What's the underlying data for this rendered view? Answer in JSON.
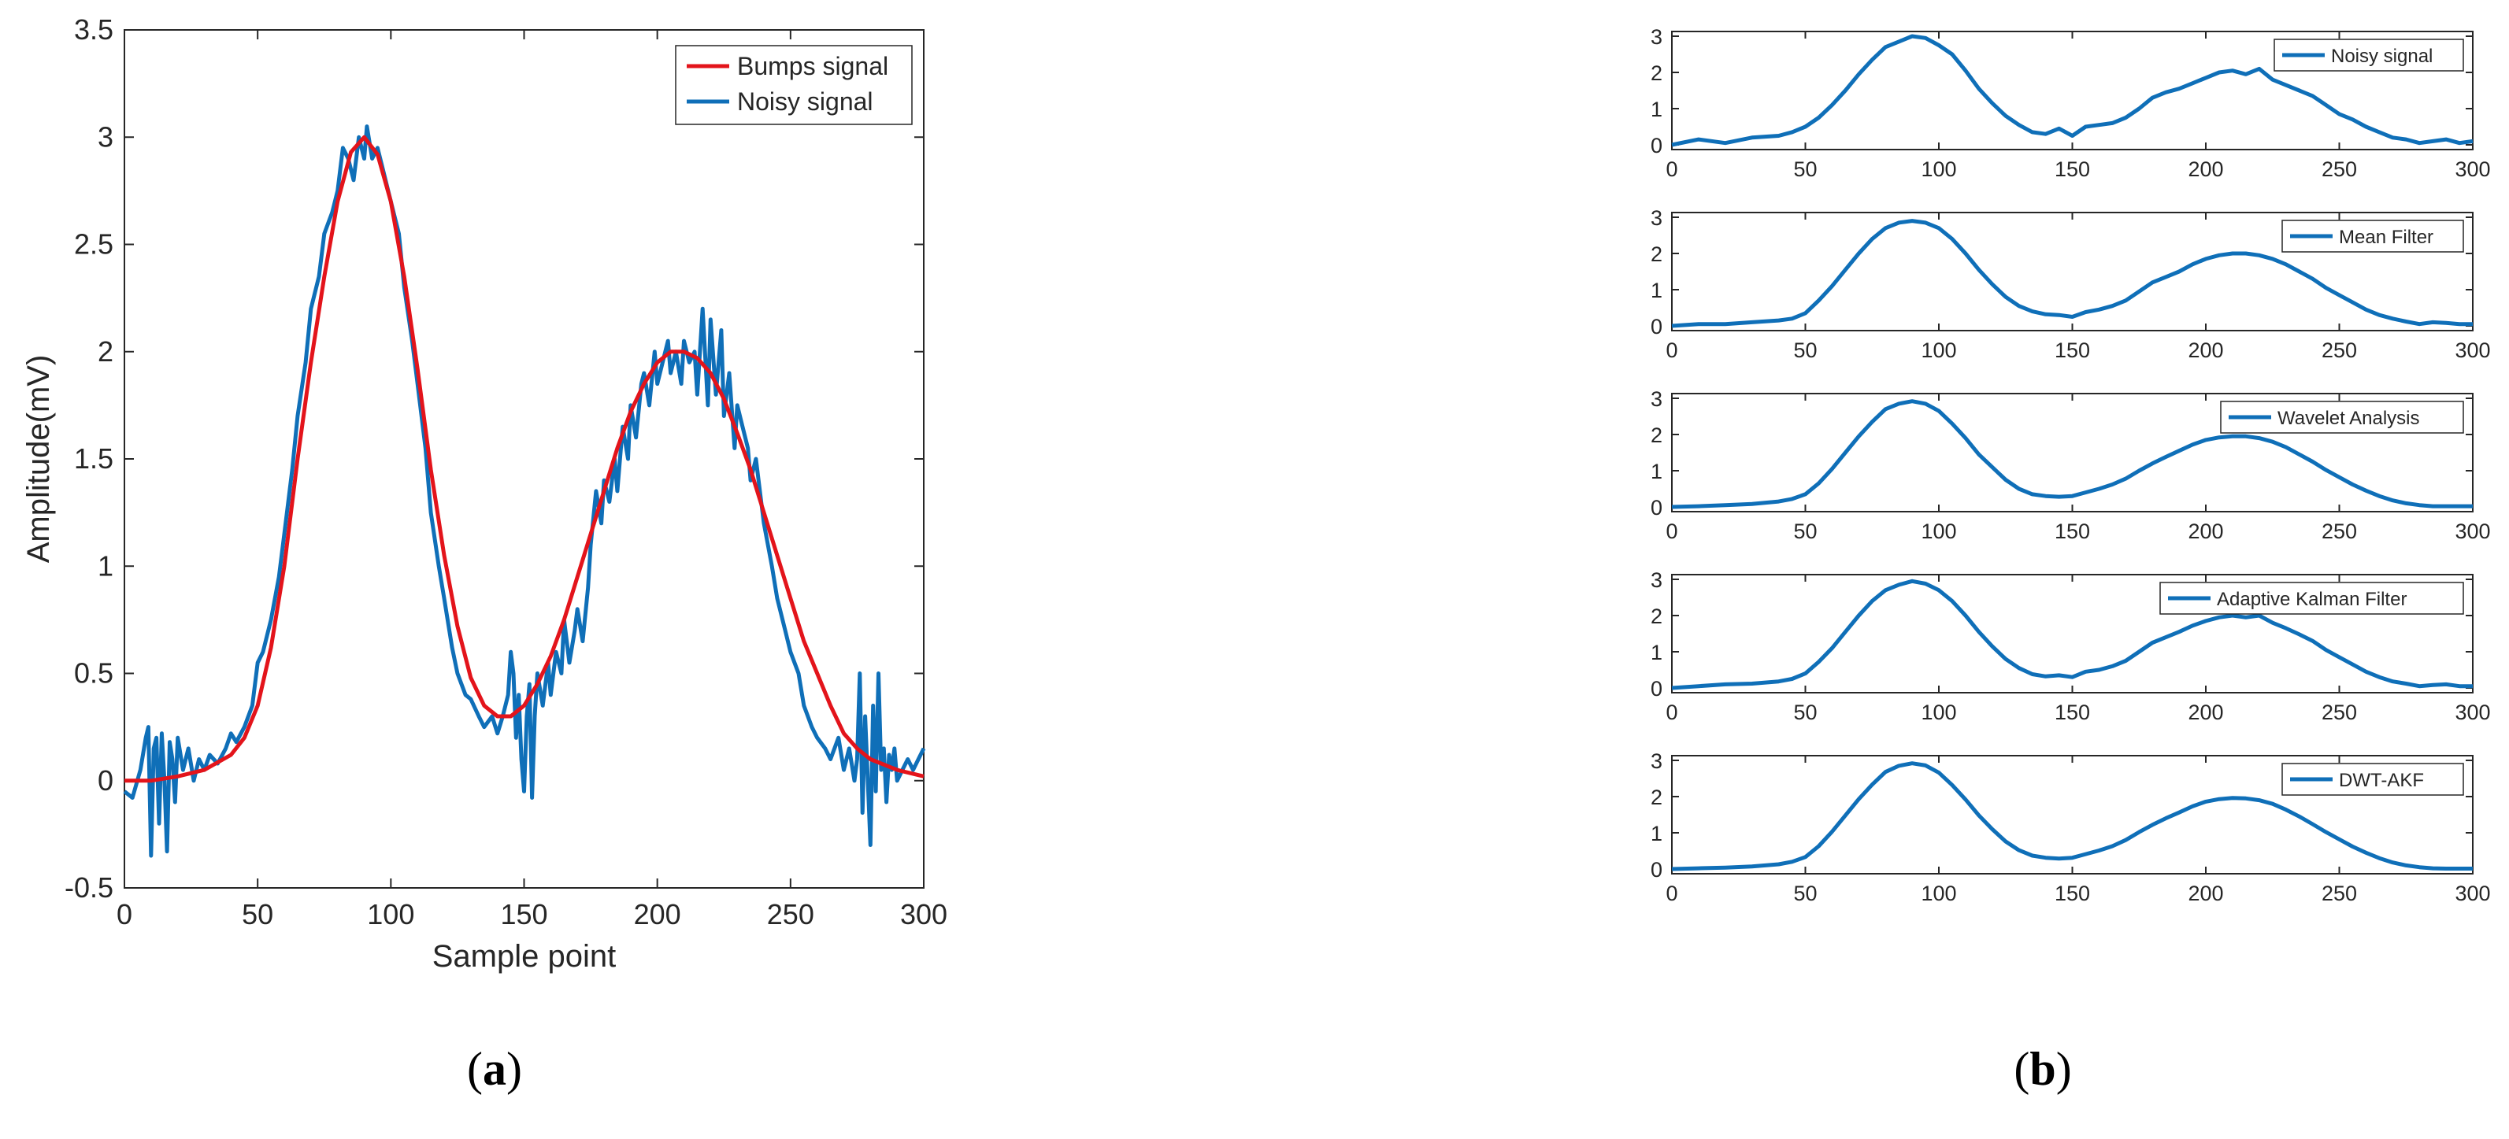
{
  "captions": {
    "left": {
      "open": "(",
      "letter": "a",
      "close": ")"
    },
    "right": {
      "open": "(",
      "letter": "b",
      "close": ")"
    }
  },
  "colors": {
    "bumps": "#e3141b",
    "noisy": "#0f6fb8",
    "axis": "#262626",
    "box": "#262626"
  },
  "chart_data": [
    {
      "type": "line",
      "panel": "a",
      "xlabel": "Sample point",
      "ylabel": "Amplitude(mV)",
      "xlim": [
        0,
        300
      ],
      "ylim": [
        -0.5,
        3.5
      ],
      "xticks": [
        "0",
        "50",
        "100",
        "150",
        "200",
        "250",
        "300"
      ],
      "yticks": [
        "-0.5",
        "0",
        "0.5",
        "1",
        "1.5",
        "2",
        "2.5",
        "3",
        "3.5"
      ],
      "legend_position": "top-right",
      "series": [
        {
          "name": "Bumps signal",
          "color_key": "bumps",
          "x": [
            0,
            10,
            20,
            30,
            40,
            45,
            50,
            55,
            60,
            65,
            70,
            75,
            80,
            85,
            90,
            95,
            100,
            105,
            110,
            115,
            120,
            125,
            130,
            135,
            140,
            145,
            150,
            155,
            160,
            165,
            170,
            175,
            180,
            185,
            190,
            195,
            200,
            205,
            210,
            215,
            220,
            225,
            230,
            235,
            240,
            245,
            250,
            255,
            260,
            265,
            270,
            275,
            280,
            290,
            300
          ],
          "y": [
            0,
            0,
            0.02,
            0.05,
            0.12,
            0.2,
            0.35,
            0.62,
            1.0,
            1.5,
            1.95,
            2.35,
            2.7,
            2.93,
            3.0,
            2.92,
            2.7,
            2.35,
            1.92,
            1.45,
            1.05,
            0.72,
            0.48,
            0.35,
            0.3,
            0.3,
            0.35,
            0.45,
            0.58,
            0.75,
            0.95,
            1.15,
            1.35,
            1.55,
            1.72,
            1.85,
            1.95,
            2.0,
            2.0,
            1.97,
            1.9,
            1.78,
            1.62,
            1.45,
            1.25,
            1.05,
            0.85,
            0.65,
            0.5,
            0.35,
            0.22,
            0.15,
            0.1,
            0.05,
            0.02
          ]
        },
        {
          "name": "Noisy signal",
          "color_key": "noisy",
          "x": [
            0,
            3,
            6,
            8,
            9,
            10,
            11,
            12,
            13,
            14,
            15,
            16,
            17,
            18,
            19,
            20,
            22,
            24,
            26,
            28,
            30,
            32,
            35,
            38,
            40,
            42,
            45,
            48,
            50,
            52,
            55,
            58,
            60,
            63,
            65,
            68,
            70,
            73,
            75,
            78,
            80,
            82,
            84,
            86,
            88,
            90,
            91,
            93,
            95,
            97,
            100,
            103,
            105,
            108,
            110,
            113,
            115,
            118,
            120,
            123,
            125,
            128,
            130,
            133,
            135,
            138,
            140,
            142,
            144,
            145,
            146,
            147,
            148,
            149,
            150,
            151,
            152,
            153,
            154,
            155,
            157,
            159,
            160,
            162,
            164,
            165,
            167,
            169,
            170,
            172,
            174,
            175,
            177,
            179,
            180,
            182,
            184,
            185,
            187,
            189,
            190,
            192,
            194,
            195,
            197,
            199,
            200,
            202,
            204,
            205,
            207,
            209,
            210,
            212,
            214,
            215,
            217,
            219,
            220,
            222,
            224,
            225,
            227,
            229,
            230,
            232,
            234,
            235,
            237,
            239,
            240,
            243,
            245,
            248,
            250,
            253,
            255,
            258,
            260,
            263,
            265,
            268,
            270,
            272,
            274,
            275,
            276,
            277,
            278,
            279,
            280,
            281,
            282,
            283,
            284,
            285,
            286,
            287,
            288,
            289,
            290,
            292,
            294,
            296,
            298,
            300
          ],
          "y": [
            -0.05,
            -0.08,
            0.05,
            0.2,
            0.25,
            -0.35,
            0.15,
            0.2,
            -0.2,
            0.22,
            0.0,
            -0.33,
            0.18,
            0.1,
            -0.1,
            0.2,
            0.05,
            0.15,
            0.0,
            0.1,
            0.05,
            0.12,
            0.08,
            0.15,
            0.22,
            0.18,
            0.25,
            0.35,
            0.55,
            0.6,
            0.75,
            0.95,
            1.15,
            1.45,
            1.7,
            1.95,
            2.2,
            2.35,
            2.55,
            2.65,
            2.75,
            2.95,
            2.9,
            2.8,
            3.0,
            2.9,
            3.05,
            2.9,
            2.95,
            2.85,
            2.7,
            2.55,
            2.3,
            2.05,
            1.85,
            1.55,
            1.25,
            1.0,
            0.85,
            0.62,
            0.5,
            0.4,
            0.38,
            0.3,
            0.25,
            0.3,
            0.22,
            0.3,
            0.4,
            0.6,
            0.5,
            0.2,
            0.4,
            0.1,
            -0.05,
            0.3,
            0.45,
            -0.08,
            0.3,
            0.5,
            0.35,
            0.55,
            0.4,
            0.6,
            0.5,
            0.75,
            0.55,
            0.7,
            0.8,
            0.65,
            0.9,
            1.1,
            1.35,
            1.2,
            1.4,
            1.3,
            1.5,
            1.35,
            1.65,
            1.5,
            1.75,
            1.6,
            1.85,
            1.9,
            1.75,
            2.0,
            1.85,
            1.95,
            2.05,
            1.9,
            2.0,
            1.85,
            2.05,
            1.95,
            2.0,
            1.8,
            2.2,
            1.75,
            2.15,
            1.8,
            2.1,
            1.7,
            1.9,
            1.55,
            1.75,
            1.65,
            1.55,
            1.4,
            1.5,
            1.3,
            1.2,
            1.0,
            0.85,
            0.7,
            0.6,
            0.5,
            0.35,
            0.25,
            0.2,
            0.15,
            0.1,
            0.2,
            0.05,
            0.15,
            0.0,
            0.1,
            0.5,
            -0.15,
            0.3,
            0.0,
            -0.3,
            0.35,
            -0.05,
            0.5,
            0.05,
            0.15,
            -0.1,
            0.12,
            0.05,
            0.15,
            0.0,
            0.05,
            0.1,
            0.05,
            0.1,
            0.15
          ]
        }
      ]
    },
    {
      "type": "line",
      "panel": "b",
      "xlim": [
        0,
        300
      ],
      "ylim": [
        0,
        3
      ],
      "xticks": [
        "0",
        "50",
        "100",
        "150",
        "200",
        "250",
        "300"
      ],
      "yticks": [
        "0",
        "1",
        "2",
        "3"
      ],
      "legend_position": "top-right",
      "x": [
        0,
        10,
        20,
        30,
        40,
        45,
        50,
        55,
        60,
        65,
        70,
        75,
        80,
        85,
        90,
        95,
        100,
        105,
        110,
        115,
        120,
        125,
        130,
        135,
        140,
        145,
        150,
        155,
        160,
        165,
        170,
        175,
        180,
        185,
        190,
        195,
        200,
        205,
        210,
        215,
        220,
        225,
        230,
        235,
        240,
        245,
        250,
        255,
        260,
        265,
        270,
        275,
        280,
        285,
        290,
        295,
        300
      ],
      "series": [
        {
          "name": "Noisy signal",
          "color_key": "noisy",
          "values": [
            0.0,
            0.15,
            0.05,
            0.2,
            0.25,
            0.35,
            0.5,
            0.75,
            1.1,
            1.5,
            1.95,
            2.35,
            2.7,
            2.85,
            3.0,
            2.95,
            2.75,
            2.5,
            2.05,
            1.55,
            1.15,
            0.8,
            0.55,
            0.35,
            0.3,
            0.45,
            0.25,
            0.5,
            0.55,
            0.6,
            0.75,
            1.0,
            1.3,
            1.45,
            1.55,
            1.7,
            1.85,
            2.0,
            2.05,
            1.95,
            2.1,
            1.8,
            1.65,
            1.5,
            1.35,
            1.1,
            0.85,
            0.7,
            0.5,
            0.35,
            0.2,
            0.15,
            0.05,
            0.1,
            0.15,
            0.05,
            0.1
          ]
        },
        {
          "name": "Mean Filter",
          "color_key": "noisy",
          "values": [
            0.0,
            0.05,
            0.05,
            0.1,
            0.15,
            0.2,
            0.35,
            0.7,
            1.1,
            1.55,
            2.0,
            2.4,
            2.7,
            2.85,
            2.9,
            2.85,
            2.7,
            2.4,
            2.0,
            1.55,
            1.15,
            0.8,
            0.55,
            0.4,
            0.32,
            0.3,
            0.25,
            0.38,
            0.45,
            0.55,
            0.7,
            0.95,
            1.2,
            1.35,
            1.5,
            1.7,
            1.85,
            1.95,
            2.0,
            2.0,
            1.95,
            1.85,
            1.7,
            1.5,
            1.3,
            1.05,
            0.85,
            0.65,
            0.45,
            0.3,
            0.2,
            0.12,
            0.05,
            0.1,
            0.08,
            0.05,
            0.05
          ]
        },
        {
          "name": "Wavelet Analysis",
          "color_key": "noisy",
          "values": [
            0.0,
            0.02,
            0.05,
            0.08,
            0.15,
            0.22,
            0.35,
            0.65,
            1.05,
            1.5,
            1.95,
            2.35,
            2.7,
            2.85,
            2.92,
            2.85,
            2.65,
            2.3,
            1.9,
            1.45,
            1.1,
            0.75,
            0.5,
            0.35,
            0.3,
            0.28,
            0.3,
            0.4,
            0.5,
            0.62,
            0.78,
            1.0,
            1.2,
            1.38,
            1.55,
            1.72,
            1.85,
            1.92,
            1.95,
            1.95,
            1.9,
            1.8,
            1.65,
            1.45,
            1.25,
            1.02,
            0.82,
            0.62,
            0.45,
            0.3,
            0.18,
            0.1,
            0.05,
            0.02,
            0.02,
            0.02,
            0.02
          ]
        },
        {
          "name": "Adaptive Kalman Filter",
          "color_key": "noisy",
          "values": [
            0.0,
            0.05,
            0.1,
            0.12,
            0.18,
            0.25,
            0.4,
            0.72,
            1.1,
            1.55,
            2.0,
            2.4,
            2.7,
            2.85,
            2.95,
            2.88,
            2.7,
            2.4,
            2.0,
            1.55,
            1.15,
            0.8,
            0.55,
            0.38,
            0.32,
            0.35,
            0.3,
            0.45,
            0.5,
            0.6,
            0.75,
            1.0,
            1.25,
            1.4,
            1.55,
            1.72,
            1.85,
            1.95,
            2.0,
            1.95,
            2.0,
            1.8,
            1.65,
            1.48,
            1.3,
            1.05,
            0.85,
            0.65,
            0.45,
            0.3,
            0.18,
            0.12,
            0.05,
            0.08,
            0.1,
            0.05,
            0.05
          ]
        },
        {
          "name": "DWT-AKF",
          "color_key": "noisy",
          "values": [
            0.0,
            0.02,
            0.04,
            0.07,
            0.13,
            0.2,
            0.33,
            0.63,
            1.03,
            1.48,
            1.93,
            2.33,
            2.68,
            2.85,
            2.92,
            2.86,
            2.66,
            2.32,
            1.92,
            1.48,
            1.1,
            0.76,
            0.52,
            0.37,
            0.31,
            0.29,
            0.31,
            0.41,
            0.51,
            0.63,
            0.8,
            1.02,
            1.22,
            1.4,
            1.56,
            1.73,
            1.86,
            1.93,
            1.96,
            1.95,
            1.9,
            1.8,
            1.64,
            1.45,
            1.24,
            1.02,
            0.82,
            0.62,
            0.45,
            0.3,
            0.18,
            0.1,
            0.05,
            0.02,
            0.01,
            0.01,
            0.01
          ]
        }
      ]
    }
  ]
}
